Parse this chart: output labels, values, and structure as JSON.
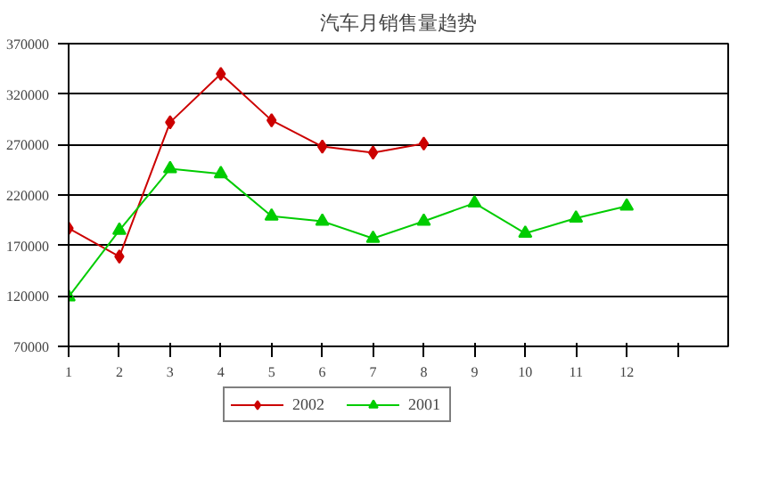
{
  "chart_data": {
    "type": "line",
    "title": "汽车月销售量趋势",
    "x": [
      1,
      2,
      3,
      4,
      5,
      6,
      7,
      8,
      9,
      10,
      11,
      12
    ],
    "series": [
      {
        "name": "2002",
        "color": "#cc0000",
        "marker": "diamond",
        "values": [
          187000,
          159000,
          292000,
          340000,
          294000,
          268000,
          262000,
          271000,
          null,
          null,
          null,
          null
        ]
      },
      {
        "name": "2001",
        "color": "#00cc00",
        "marker": "triangle",
        "values": [
          119000,
          185000,
          246000,
          241000,
          199000,
          194000,
          177000,
          194000,
          212000,
          182000,
          197000,
          209000
        ]
      }
    ],
    "xlim": [
      1,
      14
    ],
    "xticks": [
      1,
      2,
      3,
      4,
      5,
      6,
      7,
      8,
      9,
      10,
      11,
      12,
      {
        "value": 13,
        "label": null
      }
    ],
    "ylim": [
      70000,
      370000
    ],
    "yticks": [
      70000,
      120000,
      170000,
      220000,
      270000,
      320000,
      370000
    ],
    "grid": "y",
    "legend": "bottom",
    "line_style": "solid"
  }
}
